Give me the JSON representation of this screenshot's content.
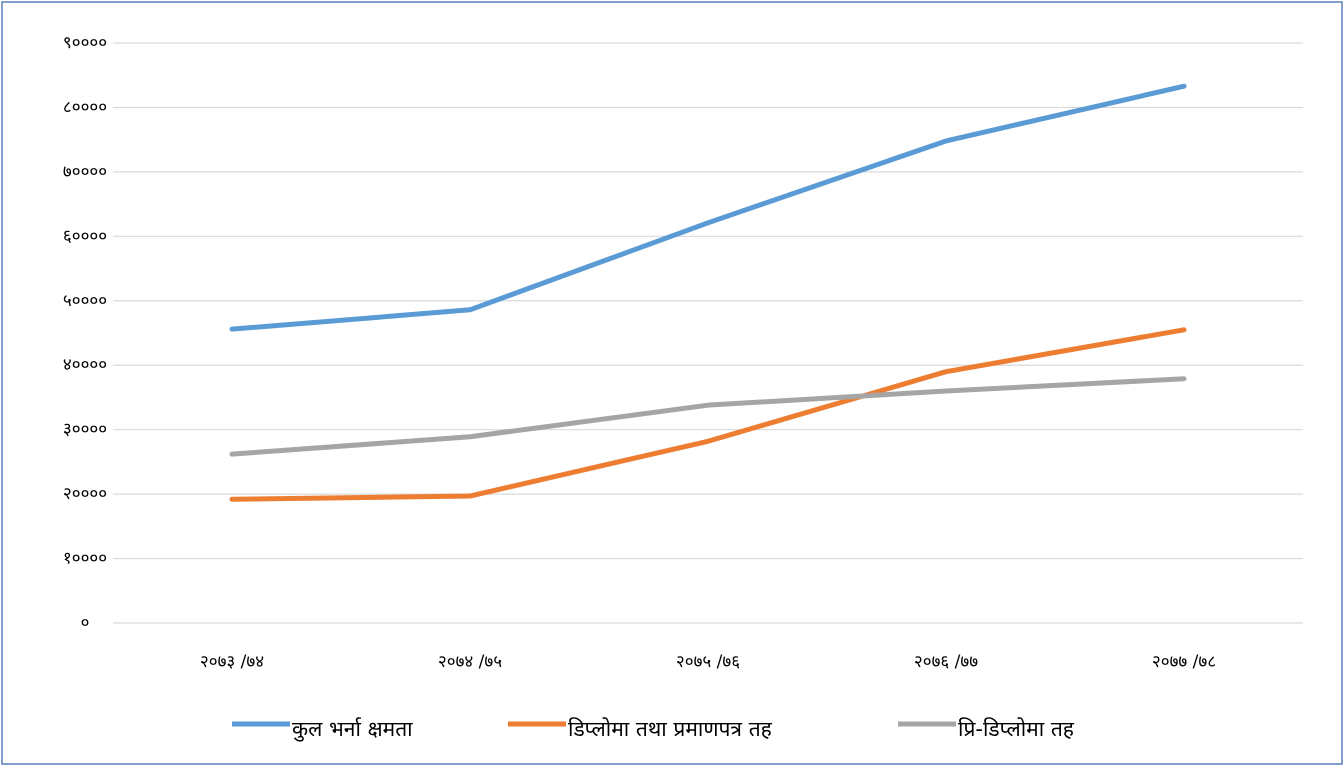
{
  "chart_data": {
    "type": "line",
    "categories": [
      "२०७३ /७४",
      "२०७४ /७५",
      "२०७५ /७६",
      "२०७६ /७७",
      "२०७७ /७८"
    ],
    "series": [
      {
        "name": "कुल भर्ना क्षमता",
        "color": "#5b9bd5",
        "values": [
          45600,
          48600,
          62100,
          74800,
          83300
        ]
      },
      {
        "name": "डिप्लोमा तथा प्रमाणपत्र तह",
        "color": "#ed7d31",
        "values": [
          19200,
          19700,
          28200,
          39000,
          45500
        ]
      },
      {
        "name": "प्रि-डिप्लोमा तह",
        "color": "#a5a5a5",
        "values": [
          26200,
          28900,
          33800,
          36000,
          37900
        ]
      }
    ],
    "ylim": [
      0,
      90000
    ],
    "yticks": [
      {
        "value": 0,
        "label": "०"
      },
      {
        "value": 10000,
        "label": "१००००"
      },
      {
        "value": 20000,
        "label": "२००००"
      },
      {
        "value": 30000,
        "label": "३००००"
      },
      {
        "value": 40000,
        "label": "४००००"
      },
      {
        "value": 50000,
        "label": "५००००"
      },
      {
        "value": 60000,
        "label": "६००००"
      },
      {
        "value": 70000,
        "label": "७००००"
      },
      {
        "value": 80000,
        "label": "८००००"
      },
      {
        "value": 90000,
        "label": "९००००"
      }
    ],
    "grid": true,
    "legend": "bottom"
  }
}
